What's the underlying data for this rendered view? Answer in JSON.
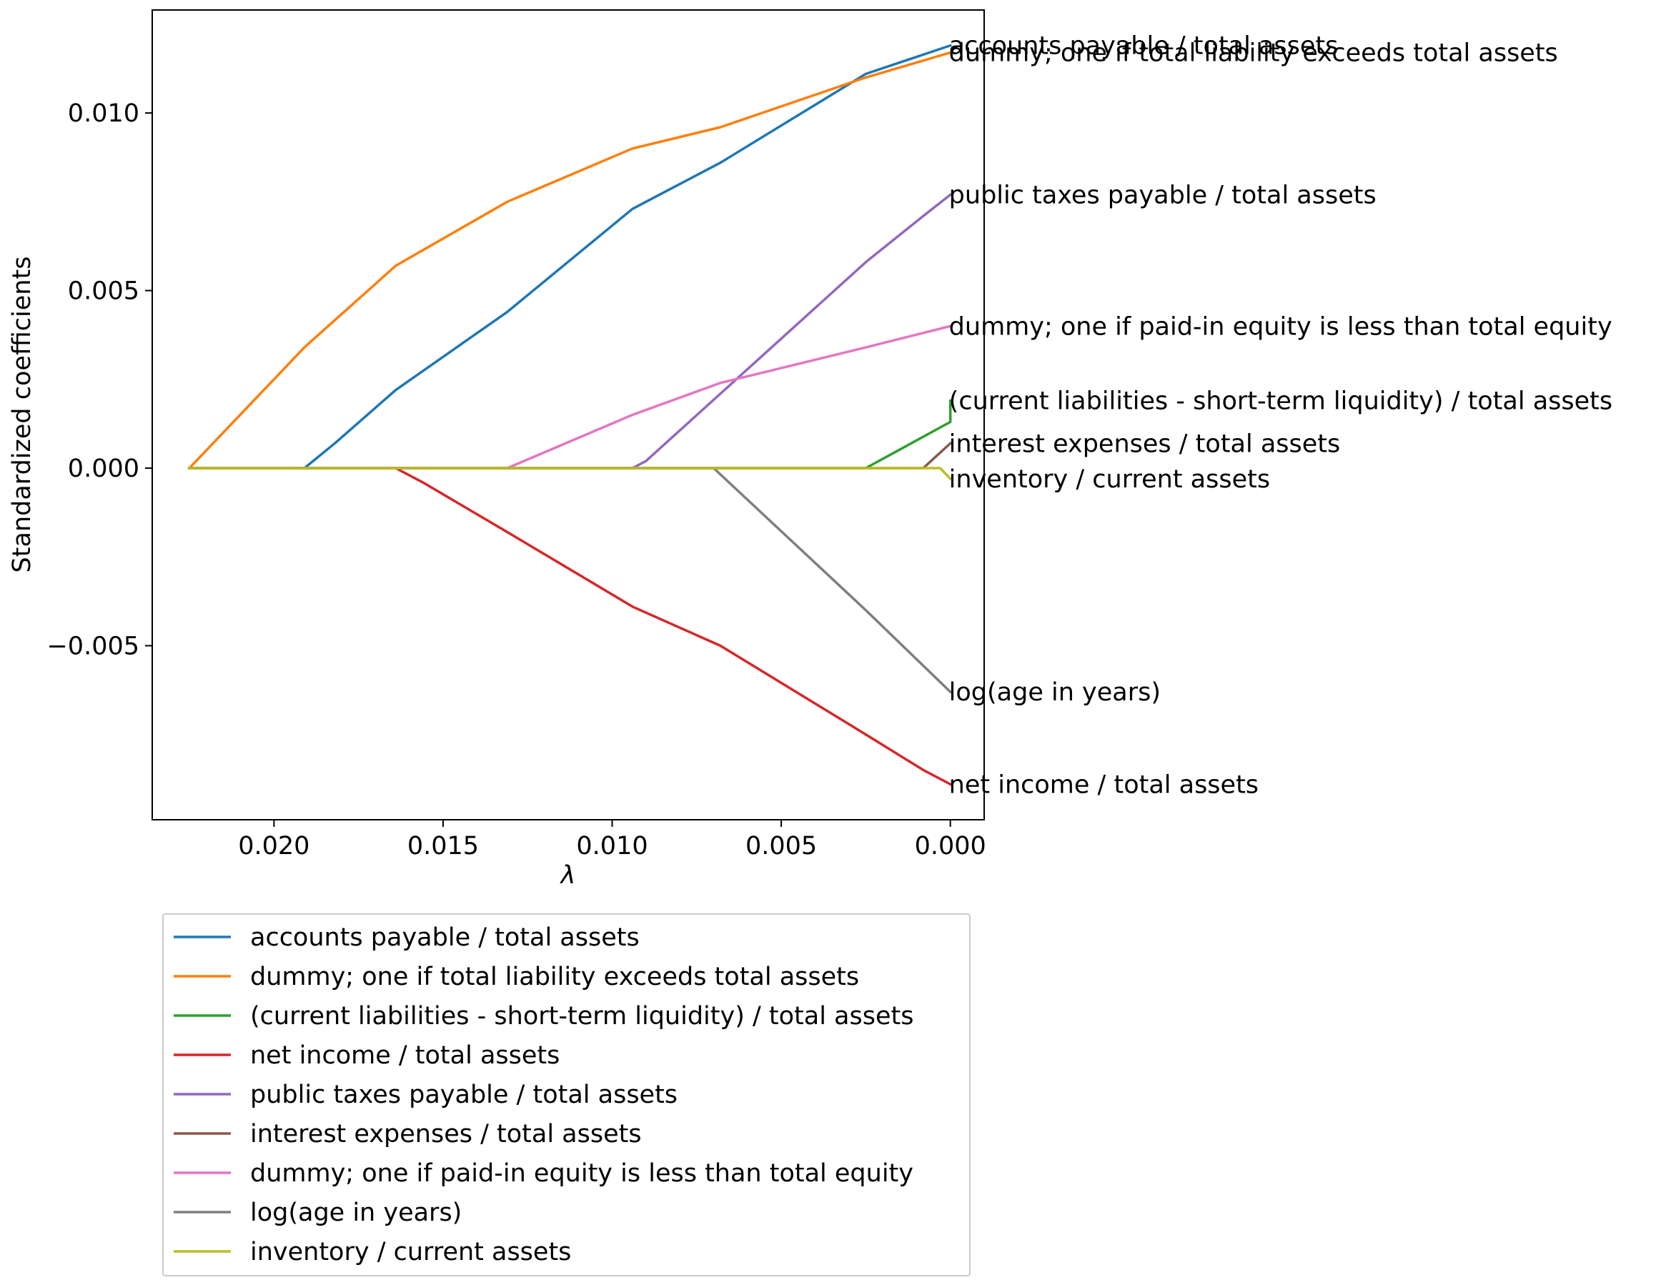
{
  "chart_data": {
    "type": "line",
    "xlabel": "λ",
    "ylabel": "Standardized coefficients",
    "x_reversed": true,
    "xlim": [
      0.0236,
      -0.001
    ],
    "ylim": [
      -0.0099,
      0.0129
    ],
    "x_ticks": [
      0.02,
      0.015,
      0.01,
      0.005,
      0.0
    ],
    "x_tick_labels": [
      "0.020",
      "0.015",
      "0.010",
      "0.005",
      "0.000"
    ],
    "y_ticks": [
      0.01,
      0.005,
      0.0,
      -0.005
    ],
    "y_tick_labels": [
      "0.010",
      "0.005",
      "0.000",
      "−0.005"
    ],
    "grid": false,
    "legend_placement": "below",
    "series": [
      {
        "name": "accounts payable / total assets",
        "color": "#1f77b4",
        "x": [
          0.0225,
          0.0191,
          0.0182,
          0.0164,
          0.0131,
          0.0094,
          0.0068,
          0.0025,
          0.0
        ],
        "y": [
          0.0,
          0.0,
          0.0007,
          0.0022,
          0.0044,
          0.0073,
          0.0086,
          0.0111,
          0.0119
        ]
      },
      {
        "name": "dummy; one if total liability exceeds total assets",
        "color": "#ff7f0e",
        "x": [
          0.0225,
          0.0191,
          0.0164,
          0.0131,
          0.0094,
          0.0068,
          0.0025,
          0.0
        ],
        "y": [
          0.0,
          0.0034,
          0.0057,
          0.0075,
          0.009,
          0.0096,
          0.011,
          0.0117
        ]
      },
      {
        "name": "(current liabilities - short-term liquidity) / total assets",
        "color": "#2ca02c",
        "x": [
          0.0225,
          0.0025,
          0.0,
          0.0
        ],
        "y": [
          0.0,
          0.0,
          0.0013,
          0.0019
        ]
      },
      {
        "name": "net income / total assets",
        "color": "#d62728",
        "x": [
          0.0225,
          0.0164,
          0.0156,
          0.0131,
          0.0094,
          0.0068,
          0.0025,
          0.0008,
          0.0
        ],
        "y": [
          0.0,
          0.0,
          -0.0004,
          -0.0018,
          -0.0039,
          -0.005,
          -0.0075,
          -0.0085,
          -0.0089
        ]
      },
      {
        "name": "public taxes payable / total assets",
        "color": "#9467bd",
        "x": [
          0.0225,
          0.0094,
          0.009,
          0.0025,
          0.0008,
          0.0
        ],
        "y": [
          0.0,
          0.0,
          0.0002,
          0.0058,
          0.0071,
          0.0077
        ]
      },
      {
        "name": "interest expenses / total assets",
        "color": "#8c564b",
        "x": [
          0.0225,
          0.0008,
          0.0
        ],
        "y": [
          0.0,
          0.0,
          0.0007
        ]
      },
      {
        "name": "dummy; one if paid-in equity is less than total equity",
        "color": "#e377c2",
        "x": [
          0.0225,
          0.0131,
          0.0094,
          0.0068,
          0.0025,
          0.0
        ],
        "y": [
          0.0,
          0.0,
          0.0015,
          0.0024,
          0.0034,
          0.004
        ]
      },
      {
        "name": "log(age in years)",
        "color": "#7f7f7f",
        "x": [
          0.0225,
          0.007,
          0.0025,
          0.0
        ],
        "y": [
          0.0,
          0.0,
          -0.004,
          -0.0063
        ]
      },
      {
        "name": "inventory / current assets",
        "color": "#bcbd22",
        "x": [
          0.0225,
          0.0003,
          0.0
        ],
        "y": [
          0.0,
          0.0,
          -0.0003
        ]
      }
    ]
  }
}
